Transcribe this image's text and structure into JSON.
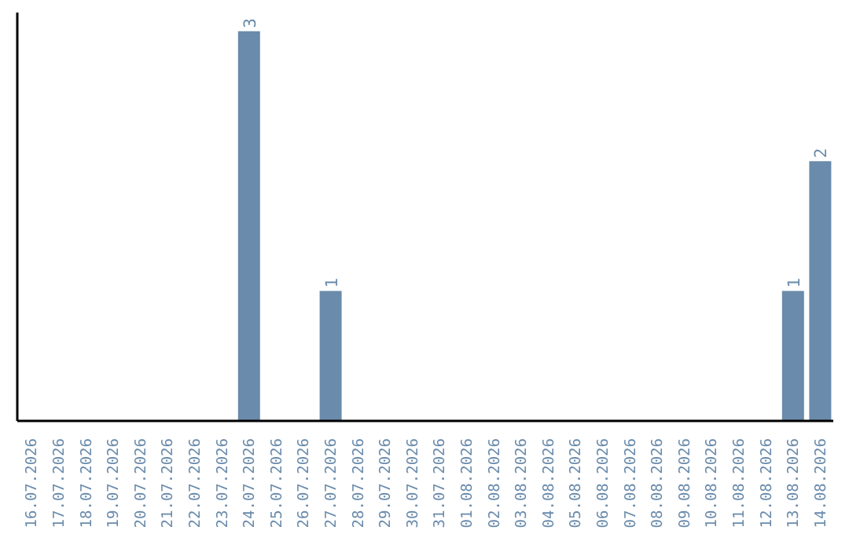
{
  "chart_data": {
    "type": "bar",
    "categories": [
      "16.07.2026",
      "17.07.2026",
      "18.07.2026",
      "19.07.2026",
      "20.07.2026",
      "21.07.2026",
      "22.07.2026",
      "23.07.2026",
      "24.07.2026",
      "25.07.2026",
      "26.07.2026",
      "27.07.2026",
      "28.07.2026",
      "29.07.2026",
      "30.07.2026",
      "31.07.2026",
      "01.08.2026",
      "02.08.2026",
      "03.08.2026",
      "04.08.2026",
      "05.08.2026",
      "06.08.2026",
      "07.08.2026",
      "08.08.2026",
      "09.08.2026",
      "10.08.2026",
      "11.08.2026",
      "12.08.2026",
      "13.08.2026",
      "14.08.2026"
    ],
    "values": [
      0,
      0,
      0,
      0,
      0,
      0,
      0,
      0,
      3,
      0,
      0,
      1,
      0,
      0,
      0,
      0,
      0,
      0,
      0,
      0,
      0,
      0,
      0,
      0,
      0,
      0,
      0,
      0,
      1,
      2
    ],
    "value_labels": [
      null,
      null,
      null,
      null,
      null,
      null,
      null,
      null,
      "3",
      null,
      null,
      "1",
      null,
      null,
      null,
      null,
      null,
      null,
      null,
      null,
      null,
      null,
      null,
      null,
      null,
      null,
      null,
      null,
      "1",
      "2"
    ],
    "color": "#6a8bab",
    "grid": false,
    "legend": false
  }
}
